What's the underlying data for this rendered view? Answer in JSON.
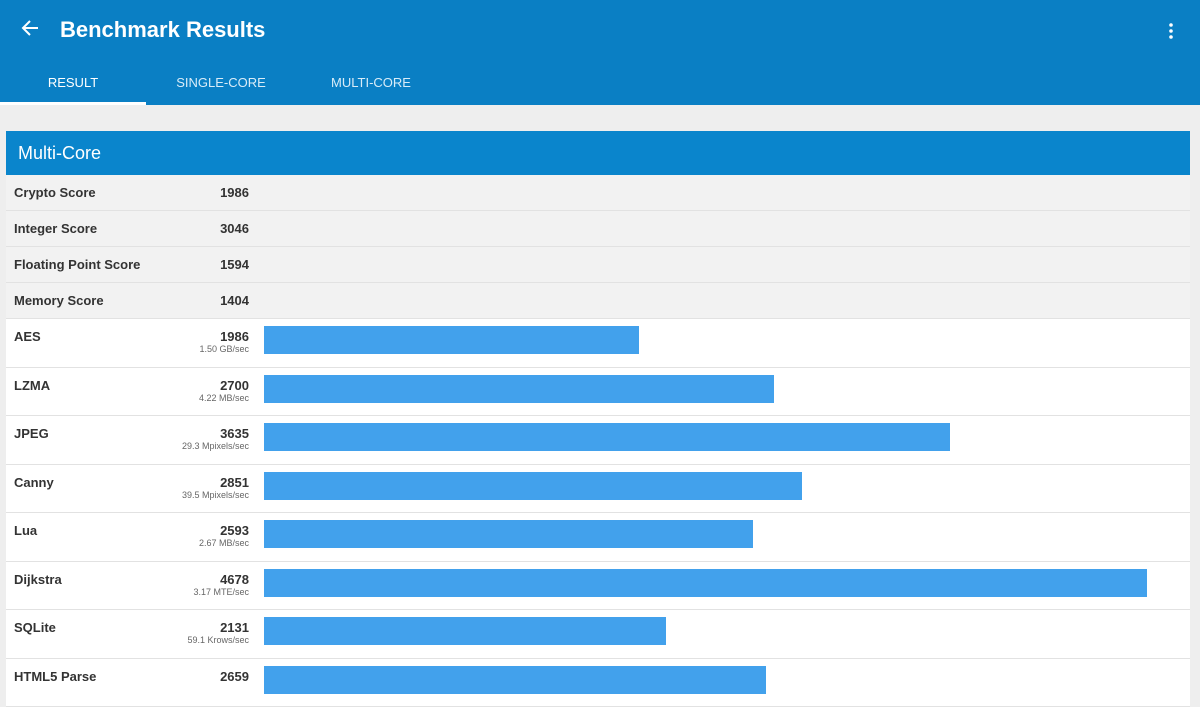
{
  "header": {
    "title": "Benchmark Results",
    "tabs": [
      "RESULT",
      "SINGLE-CORE",
      "MULTI-CORE"
    ],
    "active_tab": 0
  },
  "section": {
    "title": "Multi-Core",
    "summary": [
      {
        "name": "Crypto Score",
        "value": 1986
      },
      {
        "name": "Integer Score",
        "value": 3046
      },
      {
        "name": "Floating Point Score",
        "value": 1594
      },
      {
        "name": "Memory Score",
        "value": 1404
      }
    ],
    "tests": [
      {
        "name": "AES",
        "value": 1986,
        "rate": "1.50 GB/sec"
      },
      {
        "name": "LZMA",
        "value": 2700,
        "rate": "4.22 MB/sec"
      },
      {
        "name": "JPEG",
        "value": 3635,
        "rate": "29.3 Mpixels/sec"
      },
      {
        "name": "Canny",
        "value": 2851,
        "rate": "39.5 Mpixels/sec"
      },
      {
        "name": "Lua",
        "value": 2593,
        "rate": "2.67 MB/sec"
      },
      {
        "name": "Dijkstra",
        "value": 4678,
        "rate": "3.17 MTE/sec"
      },
      {
        "name": "SQLite",
        "value": 2131,
        "rate": "59.1 Krows/sec"
      },
      {
        "name": "HTML5 Parse",
        "value": 2659
      }
    ]
  }
}
